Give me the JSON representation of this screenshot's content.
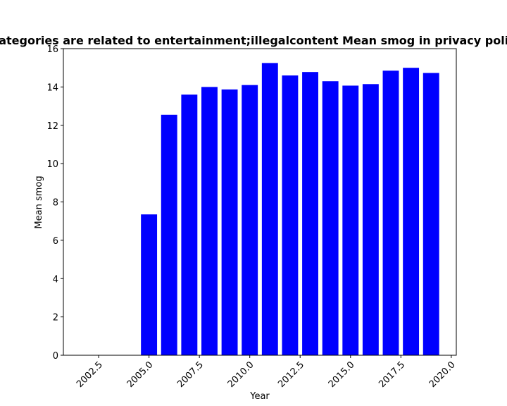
{
  "chart_data": {
    "type": "bar",
    "title": "Categories are related to entertainment;illegalcontent Mean smog in privacy policies",
    "xlabel": "Year",
    "ylabel": "Mean smog",
    "x": [
      2005,
      2006,
      2007,
      2008,
      2009,
      2010,
      2011,
      2012,
      2013,
      2014,
      2015,
      2016,
      2017,
      2018,
      2019
    ],
    "values": [
      7.35,
      12.55,
      13.6,
      14.0,
      13.87,
      14.1,
      15.25,
      14.6,
      14.78,
      14.3,
      14.07,
      14.15,
      14.85,
      15.0,
      14.73
    ],
    "xlim": [
      2000.75,
      2020.25
    ],
    "ylim": [
      0,
      16
    ],
    "xticks": [
      "2002.5",
      "2005.0",
      "2007.5",
      "2010.0",
      "2012.5",
      "2015.0",
      "2017.5",
      "2020.0"
    ],
    "yticks": [
      "0",
      "2",
      "4",
      "6",
      "8",
      "10",
      "12",
      "14",
      "16"
    ],
    "bar_color": "#0000ff",
    "grid": false
  }
}
